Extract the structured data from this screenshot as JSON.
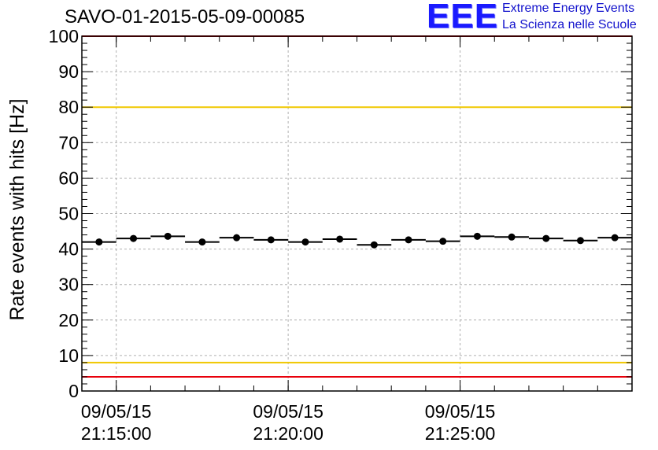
{
  "logo": {
    "mark": "EEE",
    "line1": "Extreme Energy Events",
    "line2": "La Scienza nelle Scuole"
  },
  "chart_data": {
    "type": "scatter",
    "title": "SAVO-01-2015-05-09-00085",
    "xlabel": "",
    "ylabel": "Rate events with hits [Hz]",
    "ylim": [
      0,
      100
    ],
    "xlim": [
      "09/05/15 21:14:00",
      "09/05/15 21:30:00"
    ],
    "y_ticks": [
      0,
      10,
      20,
      30,
      40,
      50,
      60,
      70,
      80,
      90,
      100
    ],
    "x_ticks": [
      {
        "date": "09/05/15",
        "time": "21:15:00"
      },
      {
        "date": "09/05/15",
        "time": "21:20:00"
      },
      {
        "date": "09/05/15",
        "time": "21:25:00"
      }
    ],
    "grid": true,
    "series": [
      {
        "x": [
          "09/05/15 21:14:30",
          "09/05/15 21:15:30",
          "09/05/15 21:16:30",
          "09/05/15 21:17:30",
          "09/05/15 21:18:30",
          "09/05/15 21:19:30",
          "09/05/15 21:20:30",
          "09/05/15 21:21:30",
          "09/05/15 21:22:30",
          "09/05/15 21:23:30",
          "09/05/15 21:24:30",
          "09/05/15 21:25:30",
          "09/05/15 21:26:30",
          "09/05/15 21:27:30",
          "09/05/15 21:28:30",
          "09/05/15 21:29:30"
        ],
        "values": [
          42.0,
          43.0,
          43.6,
          42.0,
          43.2,
          42.6,
          42.0,
          42.8,
          41.2,
          42.6,
          42.2,
          43.6,
          43.4,
          43.0,
          42.4,
          43.2
        ],
        "color": "#000000"
      }
    ],
    "reference_lines": [
      {
        "y": 80,
        "color": "#f0c800"
      },
      {
        "y": 8,
        "color": "#f0c800"
      },
      {
        "y": 100,
        "color": "#e8000b"
      },
      {
        "y": 4,
        "color": "#e8000b"
      }
    ]
  }
}
